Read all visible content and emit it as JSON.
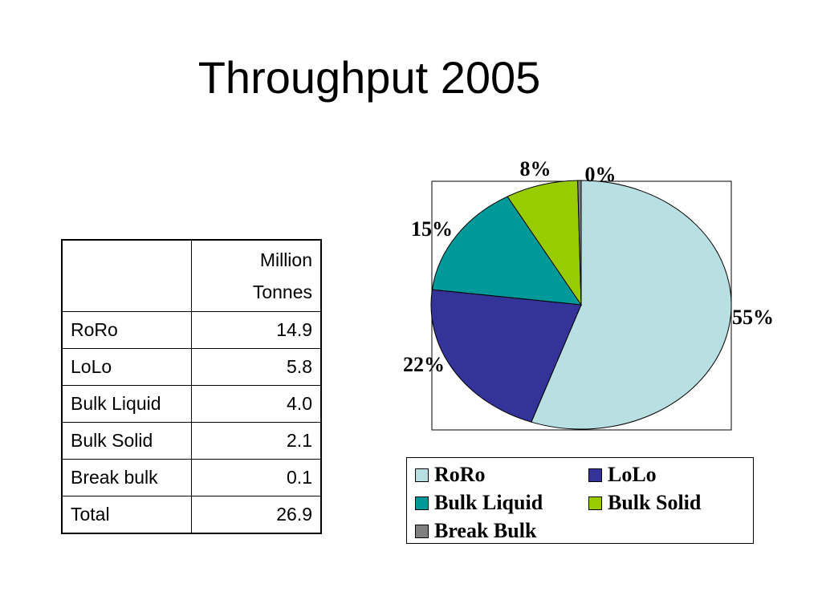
{
  "title": "Throughput 2005",
  "table": {
    "header": [
      "",
      "Million Tonnes"
    ],
    "header_lines": [
      "Million",
      "Tonnes"
    ],
    "rows": [
      {
        "label": "RoRo",
        "value": "14.9"
      },
      {
        "label": "LoLo",
        "value": "5.8"
      },
      {
        "label": "Bulk Liquid",
        "value": "4.0"
      },
      {
        "label": "Bulk Solid",
        "value": "2.1"
      },
      {
        "label": "Break bulk",
        "value": "0.1"
      },
      {
        "label": "Total",
        "value": "26.9"
      }
    ]
  },
  "chart_data": {
    "type": "pie",
    "title": "",
    "categories": [
      "RoRo",
      "LoLo",
      "Bulk Liquid",
      "Bulk Solid",
      "Break Bulk"
    ],
    "values": [
      14.9,
      5.8,
      4.0,
      2.1,
      0.1
    ],
    "data_labels": [
      "55%",
      "22%",
      "15%",
      "8%",
      "0%"
    ],
    "colors": [
      "#b8e0e2",
      "#333399",
      "#009999",
      "#99cc00",
      "#808080"
    ],
    "legend": {
      "position": "bottom",
      "entries": [
        "RoRo",
        "LoLo",
        "Bulk Liquid",
        "Bulk Solid",
        "Break Bulk"
      ]
    }
  }
}
